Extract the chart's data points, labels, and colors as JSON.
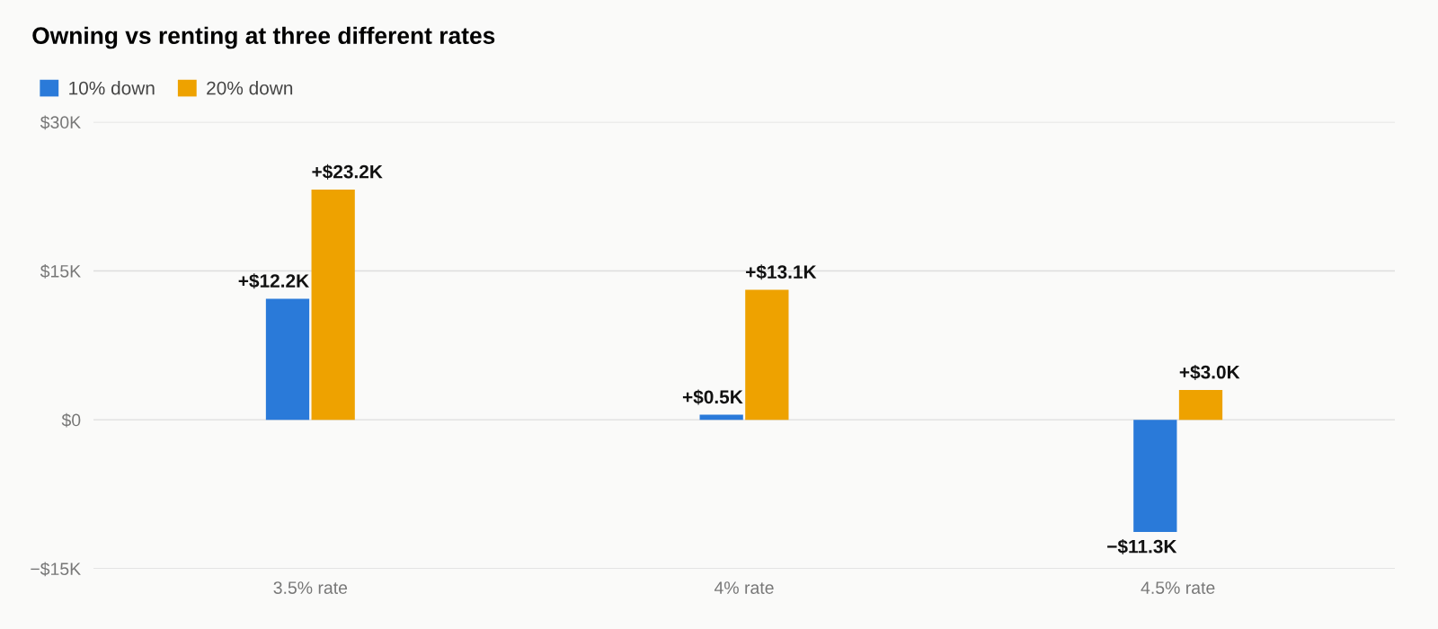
{
  "chart_data": {
    "type": "bar",
    "title": "Owning vs renting at three different rates",
    "categories": [
      "3.5% rate",
      "4% rate",
      "4.5% rate"
    ],
    "series": [
      {
        "name": "10% down",
        "color": "#2a7ad9",
        "values": [
          12.2,
          0.5,
          -11.3
        ],
        "value_labels": [
          "+$12.2K",
          "+$0.5K",
          "−$11.3K"
        ]
      },
      {
        "name": "20% down",
        "color": "#eea200",
        "values": [
          23.2,
          13.1,
          3.0
        ],
        "value_labels": [
          "+$23.2K",
          "+$13.1K",
          "+$3.0K"
        ]
      }
    ],
    "ylim": [
      -15,
      30
    ],
    "yticks": [
      {
        "value": -15,
        "label": "−$15K"
      },
      {
        "value": 0,
        "label": "$0"
      },
      {
        "value": 15,
        "label": "$15K"
      },
      {
        "value": 30,
        "label": "$30K"
      }
    ],
    "grid": "y",
    "legend": "top left"
  }
}
